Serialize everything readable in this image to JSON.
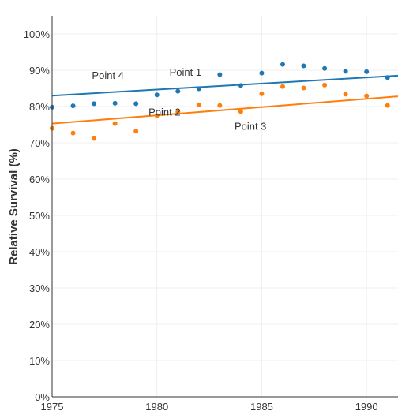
{
  "chart_data": {
    "type": "scatter",
    "title": "",
    "xlabel": "",
    "ylabel": "Relative Survival (%)",
    "xlim": [
      1975,
      1991.5
    ],
    "ylim": [
      0,
      105
    ],
    "x_ticks": [
      1975,
      1980,
      1985,
      1990
    ],
    "y_ticks": [
      {
        "value": 0,
        "label": "0%"
      },
      {
        "value": 10,
        "label": "10%"
      },
      {
        "value": 20,
        "label": "20%"
      },
      {
        "value": 30,
        "label": "30%"
      },
      {
        "value": 40,
        "label": "40%"
      },
      {
        "value": 50,
        "label": "50%"
      },
      {
        "value": 60,
        "label": "60%"
      },
      {
        "value": 70,
        "label": "70%"
      },
      {
        "value": 80,
        "label": "80%"
      },
      {
        "value": 90,
        "label": "90%"
      },
      {
        "value": 100,
        "label": "100%"
      }
    ],
    "grid": true,
    "series": [
      {
        "color": "#1f77b4",
        "x": [
          1975,
          1976,
          1977,
          1978,
          1979,
          1980,
          1981,
          1982,
          1983,
          1984,
          1985,
          1986,
          1987,
          1988,
          1989,
          1990,
          1991
        ],
        "y": [
          79.8,
          80.2,
          80.8,
          80.9,
          80.8,
          83.2,
          84.2,
          84.9,
          88.8,
          85.8,
          89.2,
          91.6,
          91.2,
          90.5,
          89.7,
          89.6,
          88.0
        ],
        "trend": {
          "x": [
            1975,
            1991.5
          ],
          "y": [
            83.0,
            88.5
          ]
        }
      },
      {
        "color": "#ff7f0e",
        "x": [
          1975,
          1976,
          1977,
          1978,
          1979,
          1980,
          1981,
          1982,
          1983,
          1984,
          1985,
          1986,
          1987,
          1988,
          1989,
          1990,
          1991
        ],
        "y": [
          74.0,
          72.7,
          71.2,
          75.3,
          73.2,
          77.5,
          78.5,
          80.5,
          80.3,
          78.6,
          83.5,
          85.5,
          85.1,
          85.9,
          83.4,
          82.9,
          80.3
        ],
        "trend": {
          "x": [
            1975,
            1991.5
          ],
          "y": [
            75.3,
            82.8
          ]
        }
      }
    ],
    "annotations": [
      {
        "text": "Point 1",
        "x": 1980.6,
        "y": 88.5
      },
      {
        "text": "Point 4",
        "x": 1976.9,
        "y": 87.6
      },
      {
        "text": "Point 2",
        "x": 1979.6,
        "y": 77.5
      },
      {
        "text": "Point 3",
        "x": 1983.7,
        "y": 73.6
      }
    ]
  }
}
